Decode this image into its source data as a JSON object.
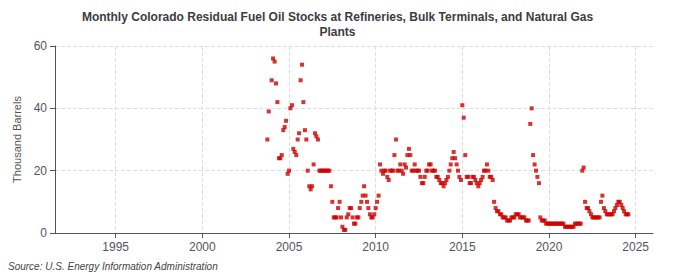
{
  "chart_data": {
    "type": "scatter",
    "title": "Monthly Colorado Residual Fuel Oil Stocks at Refineries, Bulk Terminals, and Natural Gas\nPlants",
    "ylabel": "Thousand Barrels",
    "annotation": "Source: U.S. Energy Information Administration",
    "color": "#cc0000",
    "marker": "square",
    "grid": true,
    "xlim": [
      1991.5,
      2026
    ],
    "ylim": [
      0,
      60
    ],
    "xticks": [
      1995,
      2000,
      2005,
      2010,
      2015,
      2020,
      2025
    ],
    "yticks": [
      0,
      20,
      40,
      60
    ],
    "x": [
      2003.75,
      2003.83,
      2004.0,
      2004.08,
      2004.17,
      2004.25,
      2004.33,
      2004.42,
      2004.5,
      2004.58,
      2004.67,
      2004.75,
      2004.83,
      2004.92,
      2005.0,
      2005.08,
      2005.17,
      2005.25,
      2005.33,
      2005.42,
      2005.5,
      2005.58,
      2005.67,
      2005.75,
      2005.83,
      2005.92,
      2006.0,
      2006.08,
      2006.17,
      2006.25,
      2006.33,
      2006.42,
      2006.5,
      2006.58,
      2006.67,
      2006.75,
      2006.83,
      2006.92,
      2007.0,
      2007.08,
      2007.17,
      2007.25,
      2007.33,
      2007.42,
      2007.5,
      2007.58,
      2007.67,
      2007.75,
      2007.83,
      2007.92,
      2008.0,
      2008.08,
      2008.17,
      2008.25,
      2008.33,
      2008.42,
      2008.5,
      2008.58,
      2008.67,
      2008.75,
      2008.83,
      2008.92,
      2009.0,
      2009.08,
      2009.17,
      2009.25,
      2009.33,
      2009.42,
      2009.5,
      2009.58,
      2009.67,
      2009.75,
      2009.83,
      2009.92,
      2010.0,
      2010.08,
      2010.17,
      2010.25,
      2010.33,
      2010.42,
      2010.5,
      2010.58,
      2010.67,
      2010.75,
      2010.83,
      2010.92,
      2011.0,
      2011.08,
      2011.17,
      2011.25,
      2011.33,
      2011.42,
      2011.5,
      2011.58,
      2011.67,
      2011.75,
      2011.83,
      2011.92,
      2012.0,
      2012.08,
      2012.17,
      2012.25,
      2012.33,
      2012.42,
      2012.5,
      2012.58,
      2012.67,
      2012.75,
      2012.83,
      2012.92,
      2013.0,
      2013.08,
      2013.17,
      2013.25,
      2013.33,
      2013.42,
      2013.5,
      2013.58,
      2013.67,
      2013.75,
      2013.83,
      2013.92,
      2014.0,
      2014.08,
      2014.17,
      2014.25,
      2014.33,
      2014.42,
      2014.5,
      2014.58,
      2014.67,
      2014.75,
      2014.83,
      2014.92,
      2015.0,
      2015.08,
      2015.17,
      2015.25,
      2015.33,
      2015.42,
      2015.5,
      2015.58,
      2015.67,
      2015.75,
      2015.83,
      2015.92,
      2016.0,
      2016.08,
      2016.17,
      2016.25,
      2016.33,
      2016.42,
      2016.5,
      2016.58,
      2016.67,
      2016.75,
      2016.83,
      2016.92,
      2017.0,
      2017.08,
      2017.17,
      2017.25,
      2017.33,
      2017.42,
      2017.5,
      2017.58,
      2017.67,
      2017.75,
      2017.83,
      2017.92,
      2018.0,
      2018.08,
      2018.17,
      2018.25,
      2018.33,
      2018.42,
      2018.5,
      2018.58,
      2018.67,
      2018.75,
      2018.83,
      2018.92,
      2019.0,
      2019.08,
      2019.17,
      2019.25,
      2019.33,
      2019.42,
      2019.5,
      2019.58,
      2019.67,
      2019.75,
      2019.83,
      2019.92,
      2020.0,
      2020.08,
      2020.17,
      2020.25,
      2020.33,
      2020.42,
      2020.5,
      2020.58,
      2020.67,
      2020.75,
      2020.83,
      2020.92,
      2021.0,
      2021.08,
      2021.17,
      2021.25,
      2021.33,
      2021.42,
      2021.5,
      2021.58,
      2021.67,
      2021.75,
      2021.83,
      2021.92,
      2022.0,
      2022.08,
      2022.17,
      2022.25,
      2022.33,
      2022.42,
      2022.5,
      2022.58,
      2022.67,
      2022.75,
      2022.83,
      2022.92,
      2023.0,
      2023.08,
      2023.17,
      2023.25,
      2023.33,
      2023.42,
      2023.5,
      2023.58,
      2023.67,
      2023.75,
      2023.83,
      2023.92,
      2024.0,
      2024.08,
      2024.17,
      2024.25,
      2024.33,
      2024.42,
      2024.5,
      2024.58
    ],
    "values": [
      30,
      39,
      49,
      56,
      55,
      48,
      42,
      24,
      24,
      25,
      33,
      34,
      36,
      19,
      20,
      40,
      41,
      27,
      26,
      25,
      30,
      32,
      49,
      54,
      42,
      33,
      30,
      20,
      15,
      14,
      15,
      22,
      32,
      31,
      30,
      20,
      20,
      20,
      20,
      20,
      20,
      20,
      20,
      15,
      10,
      5,
      5,
      5,
      8,
      10,
      5,
      2,
      1,
      1,
      5,
      6,
      8,
      8,
      5,
      3,
      3,
      5,
      5,
      8,
      10,
      12,
      15,
      12,
      10,
      8,
      6,
      5,
      5,
      6,
      8,
      10,
      12,
      22,
      20,
      19,
      20,
      20,
      18,
      17,
      20,
      20,
      20,
      25,
      30,
      20,
      20,
      22,
      20,
      19,
      22,
      21,
      25,
      27,
      25,
      20,
      20,
      22,
      20,
      20,
      20,
      18,
      16,
      16,
      18,
      20,
      20,
      22,
      22,
      20,
      20,
      20,
      18,
      18,
      17,
      16,
      16,
      15,
      16,
      17,
      18,
      20,
      22,
      24,
      26,
      24,
      22,
      20,
      18,
      17,
      41,
      37,
      25,
      18,
      18,
      16,
      16,
      18,
      18,
      17,
      16,
      15,
      16,
      17,
      18,
      20,
      20,
      22,
      20,
      18,
      18,
      17,
      10,
      8,
      7,
      7,
      6,
      6,
      5,
      5,
      5,
      4,
      4,
      4,
      5,
      5,
      5,
      6,
      6,
      6,
      5,
      5,
      5,
      5,
      4,
      4,
      4,
      35,
      40,
      25,
      22,
      20,
      18,
      16,
      5,
      4,
      4,
      4,
      3,
      3,
      3,
      3,
      3,
      3,
      3,
      3,
      3,
      3,
      3,
      3,
      3,
      2,
      2,
      2,
      2,
      2,
      2,
      2,
      3,
      3,
      3,
      3,
      3,
      20,
      21,
      10,
      8,
      8,
      7,
      6,
      5,
      5,
      5,
      5,
      5,
      5,
      10,
      12,
      8,
      7,
      6,
      6,
      6,
      6,
      6,
      7,
      8,
      9,
      10,
      10,
      9,
      8,
      7,
      6,
      6,
      6
    ]
  }
}
